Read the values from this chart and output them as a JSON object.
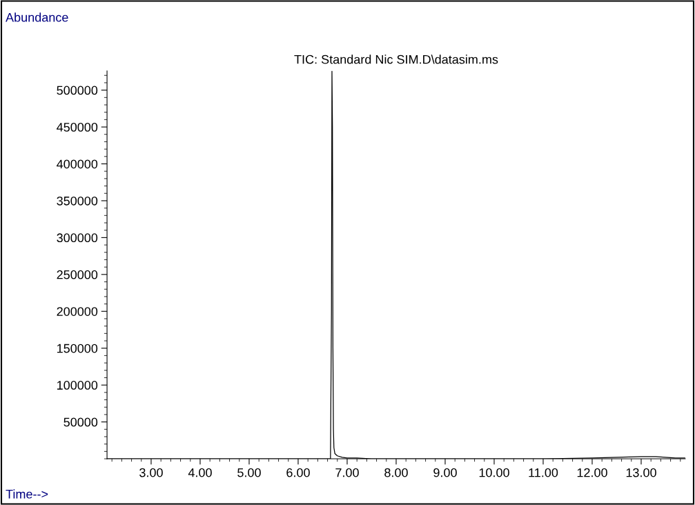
{
  "chart_data": {
    "type": "line",
    "title": "TIC: Standard Nic SIM.D\\datasim.ms",
    "xlabel": "Time-->",
    "ylabel": "Abundance",
    "series": [
      {
        "color": "#000000",
        "x": [
          2.1,
          6.6,
          6.66,
          6.68,
          6.69,
          6.7,
          6.71,
          6.72,
          6.73,
          6.75,
          6.8,
          6.9,
          7.0,
          7.2,
          7.5,
          8.0,
          9.0,
          10.0,
          11.0,
          12.0,
          12.5,
          13.0,
          13.3,
          13.5,
          13.7,
          13.9
        ],
        "values": [
          0,
          0,
          0,
          200000,
          526000,
          450000,
          150000,
          40000,
          15000,
          7000,
          4000,
          2000,
          1000,
          1000,
          0,
          0,
          0,
          0,
          0,
          1000,
          2000,
          3000,
          3000,
          2000,
          1000,
          1000
        ]
      }
    ],
    "xlim": [
      2.1,
      13.9
    ],
    "ylim": [
      0,
      526000
    ],
    "xticks": [
      {
        "value": 3,
        "label": "3.00"
      },
      {
        "value": 4,
        "label": "4.00"
      },
      {
        "value": 5,
        "label": "5.00"
      },
      {
        "value": 6,
        "label": "6.00"
      },
      {
        "value": 7,
        "label": "7.00"
      },
      {
        "value": 8,
        "label": "8.00"
      },
      {
        "value": 9,
        "label": "9.00"
      },
      {
        "value": 10,
        "label": "10.00"
      },
      {
        "value": 11,
        "label": "11.00"
      },
      {
        "value": 12,
        "label": "12.00"
      },
      {
        "value": 13,
        "label": "13.00"
      }
    ],
    "yticks": [
      50000,
      100000,
      150000,
      200000,
      250000,
      300000,
      350000,
      400000,
      450000,
      500000
    ],
    "grid": false,
    "legend": false
  }
}
